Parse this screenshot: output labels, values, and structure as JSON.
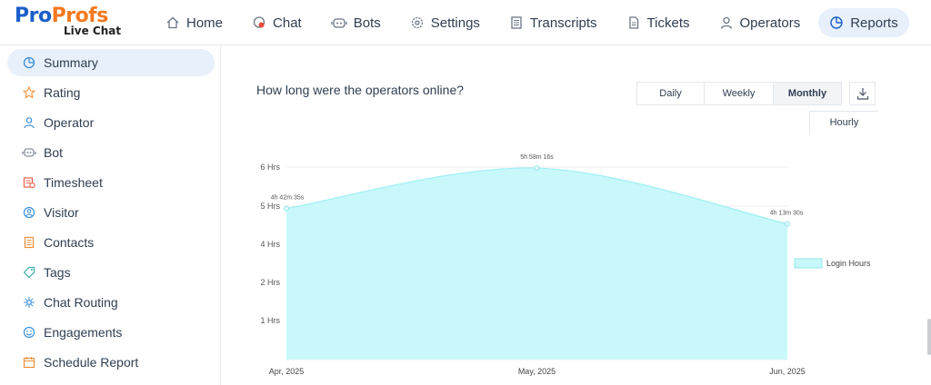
{
  "brand": {
    "logo_part1": "Pro",
    "logo_part2": "Profs",
    "logo_sub": "Live Chat"
  },
  "nav": [
    {
      "label": "Home",
      "icon": "home-icon"
    },
    {
      "label": "Chat",
      "icon": "chat-icon"
    },
    {
      "label": "Bots",
      "icon": "bot-icon"
    },
    {
      "label": "Settings",
      "icon": "gear-icon"
    },
    {
      "label": "Transcripts",
      "icon": "transcript-icon"
    },
    {
      "label": "Tickets",
      "icon": "ticket-icon"
    },
    {
      "label": "Operators",
      "icon": "user-icon"
    },
    {
      "label": "Reports",
      "icon": "pie-chart-icon",
      "active": true
    }
  ],
  "sidebar": {
    "items": [
      {
        "label": "Summary",
        "icon": "pie-chart-icon",
        "active": true
      },
      {
        "label": "Rating",
        "icon": "star-icon"
      },
      {
        "label": "Operator",
        "icon": "user-icon"
      },
      {
        "label": "Bot",
        "icon": "bot-icon"
      },
      {
        "label": "Timesheet",
        "icon": "timesheet-icon"
      },
      {
        "label": "Visitor",
        "icon": "visitor-icon"
      },
      {
        "label": "Contacts",
        "icon": "contacts-icon"
      },
      {
        "label": "Tags",
        "icon": "tag-icon"
      },
      {
        "label": "Chat Routing",
        "icon": "routing-icon"
      },
      {
        "label": "Engagements",
        "icon": "smile-icon"
      },
      {
        "label": "Schedule Report",
        "icon": "calendar-icon"
      }
    ]
  },
  "report": {
    "question": "How long were the operators online?",
    "periods": [
      "Daily",
      "Weekly",
      "Monthly"
    ],
    "active_period": "Monthly",
    "hourly_label": "Hourly"
  },
  "colors": {
    "accent": "#1a5fc9",
    "brand_orange": "#f47920",
    "area_fill": "#c8f8fa",
    "area_line": "#9feff3",
    "icon_blue": "#3a8fd8",
    "icon_orange": "#f0903a"
  },
  "chart_data": {
    "type": "area",
    "x": [
      "Apr, 2025",
      "May, 2025",
      "Jun, 2025"
    ],
    "series": [
      {
        "name": "Login Hours",
        "values": [
          4.71,
          5.97,
          4.23
        ],
        "labels": [
          "4h 42m 35s",
          "5h 58m 16s",
          "4h 13m 30s"
        ]
      }
    ],
    "y_ticks": [
      "",
      "1 Hrs",
      "2 Hrs",
      "4 Hrs",
      "5 Hrs",
      "6 Hrs"
    ],
    "ylim": [
      0,
      6
    ],
    "grid": true,
    "legend_position": "right"
  }
}
